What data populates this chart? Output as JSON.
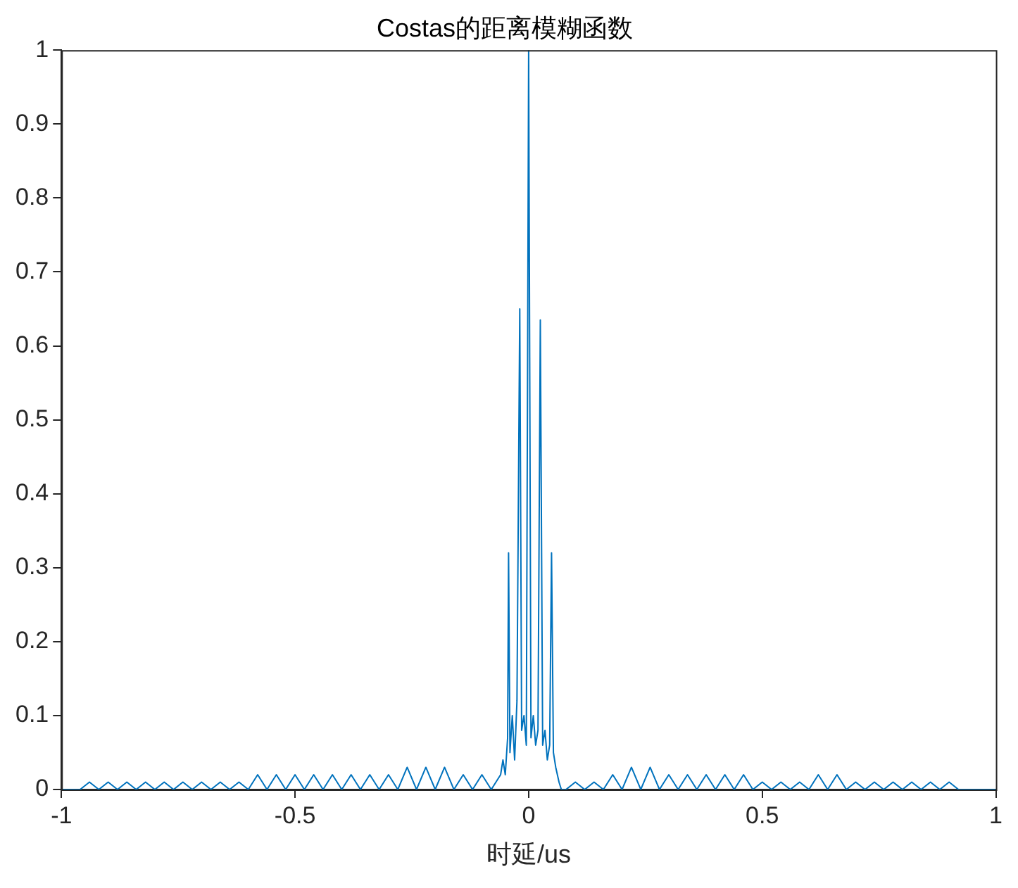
{
  "chart_data": {
    "type": "line",
    "title": "Costas的距离模糊函数",
    "xlabel": "时延/us",
    "xlim": [
      -1,
      1
    ],
    "xticks": [
      -1,
      -0.5,
      0,
      0.5,
      1
    ],
    "ylim": [
      0,
      1
    ],
    "yticks": [
      0,
      0.1,
      0.2,
      0.3,
      0.4,
      0.5,
      0.6,
      0.7,
      0.8,
      0.9,
      1
    ],
    "grid": false,
    "legend": false,
    "marker": "none",
    "line_style": "solid",
    "x": [
      -1,
      -0.96,
      -0.94,
      -0.92,
      -0.9,
      -0.88,
      -0.86,
      -0.84,
      -0.82,
      -0.8,
      -0.78,
      -0.76,
      -0.74,
      -0.72,
      -0.7,
      -0.68,
      -0.66,
      -0.64,
      -0.62,
      -0.6,
      -0.58,
      -0.56,
      -0.54,
      -0.52,
      -0.5,
      -0.48,
      -0.46,
      -0.44,
      -0.42,
      -0.4,
      -0.38,
      -0.36,
      -0.34,
      -0.32,
      -0.3,
      -0.28,
      -0.26,
      -0.24,
      -0.22,
      -0.2,
      -0.18,
      -0.16,
      -0.14,
      -0.12,
      -0.1,
      -0.08,
      -0.07,
      -0.06,
      -0.055,
      -0.05,
      -0.045,
      -0.043,
      -0.04,
      -0.035,
      -0.03,
      -0.025,
      -0.019,
      -0.015,
      -0.01,
      -0.005,
      0,
      0.005,
      0.01,
      0.015,
      0.02,
      0.025,
      0.03,
      0.035,
      0.04,
      0.045,
      0.049,
      0.053,
      0.058,
      0.065,
      0.07,
      0.08,
      0.1,
      0.12,
      0.14,
      0.16,
      0.18,
      0.2,
      0.22,
      0.24,
      0.26,
      0.28,
      0.3,
      0.32,
      0.34,
      0.36,
      0.38,
      0.4,
      0.42,
      0.44,
      0.46,
      0.48,
      0.5,
      0.52,
      0.54,
      0.56,
      0.58,
      0.6,
      0.62,
      0.64,
      0.66,
      0.68,
      0.7,
      0.72,
      0.74,
      0.76,
      0.78,
      0.8,
      0.82,
      0.84,
      0.86,
      0.88,
      0.9,
      0.92,
      0.94,
      1
    ],
    "series": [
      {
        "color": "#0072bd",
        "values": [
          0,
          0,
          0.01,
          0,
          0.01,
          0,
          0.01,
          0,
          0.01,
          0,
          0.01,
          0,
          0.01,
          0,
          0.01,
          0,
          0.01,
          0,
          0.01,
          0,
          0.02,
          0,
          0.02,
          0,
          0.02,
          0,
          0.02,
          0,
          0.02,
          0,
          0.02,
          0,
          0.02,
          0,
          0.02,
          0,
          0.03,
          0,
          0.03,
          0,
          0.03,
          0,
          0.02,
          0,
          0.02,
          0,
          0.01,
          0.02,
          0.04,
          0.02,
          0.07,
          0.32,
          0.05,
          0.1,
          0.04,
          0.12,
          0.65,
          0.08,
          0.1,
          0.06,
          1,
          0.07,
          0.1,
          0.06,
          0.08,
          0.635,
          0.06,
          0.08,
          0.04,
          0.06,
          0.32,
          0.05,
          0.03,
          0.01,
          0,
          0,
          0.01,
          0,
          0.01,
          0,
          0.02,
          0,
          0.03,
          0,
          0.03,
          0,
          0.02,
          0,
          0.02,
          0,
          0.02,
          0,
          0.02,
          0,
          0.02,
          0,
          0.01,
          0,
          0.01,
          0,
          0.01,
          0,
          0.02,
          0,
          0.02,
          0,
          0.01,
          0,
          0.01,
          0,
          0.01,
          0,
          0.01,
          0,
          0.01,
          0,
          0.01,
          0,
          0,
          0
        ]
      }
    ]
  }
}
